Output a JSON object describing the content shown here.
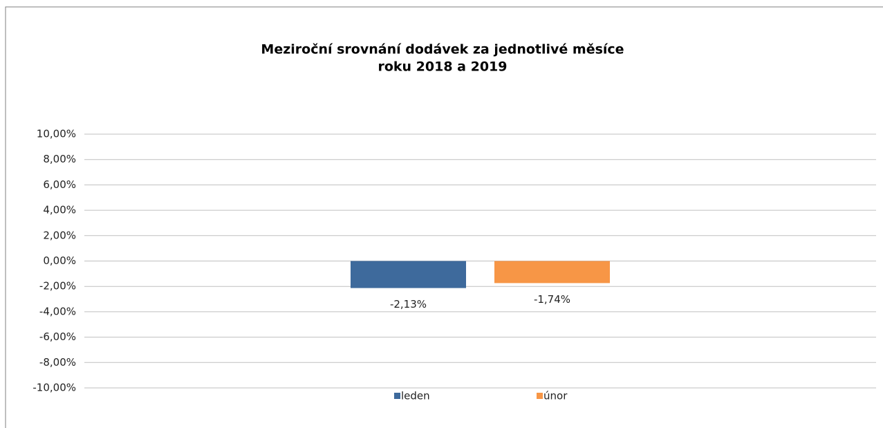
{
  "chart_data": {
    "type": "bar",
    "title": [
      "Meziroční srovnání dodávek za jednotlivé měsíce",
      "roku 2018 a 2019"
    ],
    "categories": [
      null
    ],
    "series": [
      {
        "name": "leden",
        "color": "#3e6a9c",
        "values": [
          -2.13
        ],
        "value_labels": [
          "-2,13%"
        ]
      },
      {
        "name": "únor",
        "color": "#f79646",
        "values": [
          -1.74
        ],
        "value_labels": [
          "-1,74%"
        ]
      }
    ],
    "ylim": [
      -10,
      10
    ],
    "yticks": [
      {
        "value": -10,
        "label": "-10,00%"
      },
      {
        "value": -8,
        "label": "-8,00%"
      },
      {
        "value": -6,
        "label": "-6,00%"
      },
      {
        "value": -4,
        "label": "-4,00%"
      },
      {
        "value": -2,
        "label": "-2,00%"
      },
      {
        "value": 0,
        "label": "0,00%"
      },
      {
        "value": 2,
        "label": "2,00%"
      },
      {
        "value": 4,
        "label": "4,00%"
      },
      {
        "value": 6,
        "label": "6,00%"
      },
      {
        "value": 8,
        "label": "8,00%"
      },
      {
        "value": 10,
        "label": "10,00%"
      }
    ],
    "grid": true,
    "legend": "bottom"
  }
}
